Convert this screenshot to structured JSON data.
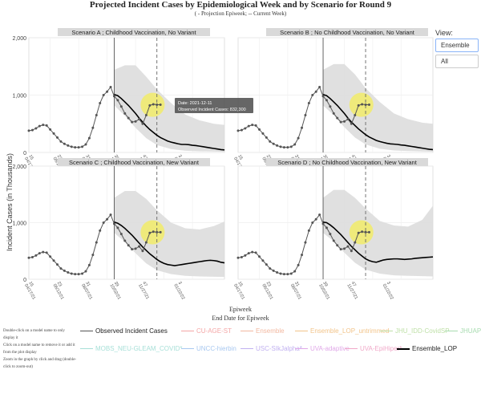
{
  "header": {
    "title": "Projected Incident Cases by Epidemiological Week and by Scenario for Round 9",
    "subtitle": "( - Projection Epiweek; -- Current Week)"
  },
  "view": {
    "label": "View:",
    "options": [
      "Ensemble",
      "All"
    ],
    "selected": "Ensemble"
  },
  "axis": {
    "ylabel": "Incident Cases (in Thousands)",
    "xlabel": "Epiweek",
    "xlabel2": "End Date for Epiweek",
    "y_ticks": [
      "0",
      "1,000",
      "2,000"
    ],
    "x_ticks": [
      "15\n04/17/21",
      "23\n06/12/21",
      "31\n08/07/21",
      "39\n10/02/21",
      "47\n11/27/21",
      "3\n01/22/22"
    ]
  },
  "tooltip": {
    "date": "Date: 2021-12-11",
    "value": "Observed Incident Cases:   832,300"
  },
  "help_text": [
    "Double-click on a model name to only display it",
    "Click on a model name to remove it or add it from the plot display",
    "Zoom in the graph by click and drag (double-click to zoom-out)"
  ],
  "legend": [
    {
      "label": "Observed Incident Cases",
      "color": "#555555"
    },
    {
      "label": "CU-AGE-ST",
      "color": "#f4a6a6"
    },
    {
      "label": "Ensemble",
      "color": "#f2b8a0"
    },
    {
      "label": "Ensemble_LOP_untrimmed",
      "color": "#f2c48a"
    },
    {
      "label": "JHU_IDD-CovidSP",
      "color": "#bfe0a8"
    },
    {
      "label": "JHUAPL-Bucky",
      "color": "#a8dcb0"
    },
    {
      "label": "MOBS_NEU-GLEAM_COVID*",
      "color": "#a8e0d8"
    },
    {
      "label": "UNCC-hierbin",
      "color": "#a8c8f0"
    },
    {
      "label": "USC-SIkJalpha*",
      "color": "#c0b0f0"
    },
    {
      "label": "UVA-adaptive",
      "color": "#e0a8e8"
    },
    {
      "label": "UVA-EpiHiper*",
      "color": "#f0a8c8"
    },
    {
      "label": "Ensemble_LOP",
      "color": "#000000"
    }
  ],
  "colors": {
    "observed": "#555555",
    "ensemble": "#000000",
    "band": "#dddddd",
    "highlight": "#f4ee5a",
    "panel_header_bg": "#d9d9d9"
  },
  "chart_data": [
    {
      "type": "line",
      "title": "Scenario A ; Childhood Vaccination, No Variant",
      "ylim": [
        0,
        2000
      ],
      "x_unit": "week index from epiweek 15 of 2021",
      "observed": {
        "name": "Observed Incident Cases",
        "x": [
          0,
          1,
          2,
          3,
          4,
          5,
          6,
          7,
          8,
          9,
          10,
          11,
          12,
          13,
          14,
          15,
          16,
          17,
          18,
          19,
          20,
          21,
          22,
          23,
          24,
          25,
          26,
          27,
          28,
          29,
          30,
          31,
          32,
          33,
          34,
          35,
          36,
          37
        ],
        "y": [
          380,
          390,
          420,
          460,
          480,
          470,
          400,
          330,
          260,
          190,
          150,
          120,
          100,
          90,
          90,
          100,
          140,
          250,
          430,
          650,
          860,
          1000,
          1060,
          1140,
          980,
          910,
          800,
          680,
          600,
          530,
          540,
          580,
          500,
          650,
          820,
          840,
          832,
          832
        ]
      },
      "projection_start": 24,
      "current_week": 36,
      "ensemble": {
        "name": "Ensemble_LOP",
        "x": [
          24,
          25,
          26,
          27,
          28,
          29,
          30,
          31,
          32,
          33,
          34,
          35,
          36,
          37,
          38,
          39,
          40,
          41,
          42,
          43,
          44,
          45,
          46,
          47,
          48,
          49,
          50,
          51,
          52,
          53,
          54,
          55
        ],
        "y": [
          1010,
          990,
          940,
          880,
          820,
          750,
          680,
          600,
          530,
          460,
          400,
          350,
          300,
          260,
          230,
          200,
          180,
          165,
          150,
          140,
          140,
          135,
          125,
          120,
          110,
          100,
          90,
          80,
          70,
          60,
          50,
          45
        ]
      },
      "band": {
        "x": [
          24,
          27,
          30,
          33,
          36,
          40,
          44,
          48,
          52,
          55
        ],
        "upper": [
          1440,
          1520,
          1520,
          1320,
          1100,
          860,
          660,
          560,
          500,
          480
        ],
        "lower": [
          820,
          640,
          430,
          250,
          130,
          60,
          30,
          20,
          15,
          10
        ]
      }
    },
    {
      "type": "line",
      "title": "Scenario B ; No Childhood Vaccination, No Variant",
      "ylim": [
        0,
        2000
      ],
      "x_unit": "week index from epiweek 15 of 2021",
      "observed": {
        "name": "Observed Incident Cases",
        "x": [
          0,
          1,
          2,
          3,
          4,
          5,
          6,
          7,
          8,
          9,
          10,
          11,
          12,
          13,
          14,
          15,
          16,
          17,
          18,
          19,
          20,
          21,
          22,
          23,
          24,
          25,
          26,
          27,
          28,
          29,
          30,
          31,
          32,
          33,
          34,
          35,
          36,
          37
        ],
        "y": [
          380,
          390,
          420,
          460,
          480,
          470,
          400,
          330,
          260,
          190,
          150,
          120,
          100,
          90,
          90,
          100,
          140,
          250,
          430,
          650,
          860,
          1000,
          1060,
          1140,
          980,
          910,
          800,
          680,
          600,
          530,
          540,
          580,
          500,
          650,
          820,
          840,
          832,
          832
        ]
      },
      "projection_start": 24,
      "current_week": 36,
      "ensemble": {
        "name": "Ensemble_LOP",
        "x": [
          24,
          25,
          26,
          27,
          28,
          29,
          30,
          31,
          32,
          33,
          34,
          35,
          36,
          37,
          38,
          39,
          40,
          41,
          42,
          43,
          44,
          45,
          46,
          47,
          48,
          49,
          50,
          51,
          52,
          53,
          54,
          55
        ],
        "y": [
          1010,
          990,
          940,
          880,
          820,
          750,
          680,
          600,
          530,
          470,
          410,
          360,
          310,
          270,
          240,
          210,
          190,
          175,
          160,
          150,
          145,
          140,
          130,
          125,
          115,
          105,
          95,
          85,
          75,
          65,
          55,
          50
        ]
      },
      "band": {
        "x": [
          24,
          27,
          30,
          33,
          36,
          40,
          44,
          48,
          52,
          55
        ],
        "upper": [
          1440,
          1540,
          1540,
          1360,
          1120,
          880,
          680,
          580,
          520,
          500
        ],
        "lower": [
          820,
          650,
          440,
          260,
          140,
          65,
          35,
          25,
          18,
          12
        ]
      }
    },
    {
      "type": "line",
      "title": "Scenario C ; Childhood Vaccination, New Variant",
      "ylim": [
        0,
        2000
      ],
      "x_unit": "week index from epiweek 15 of 2021",
      "observed": {
        "name": "Observed Incident Cases",
        "x": [
          0,
          1,
          2,
          3,
          4,
          5,
          6,
          7,
          8,
          9,
          10,
          11,
          12,
          13,
          14,
          15,
          16,
          17,
          18,
          19,
          20,
          21,
          22,
          23,
          24,
          25,
          26,
          27,
          28,
          29,
          30,
          31,
          32,
          33,
          34,
          35,
          36,
          37
        ],
        "y": [
          380,
          390,
          420,
          460,
          480,
          470,
          400,
          330,
          260,
          190,
          150,
          120,
          100,
          90,
          90,
          100,
          140,
          250,
          430,
          650,
          860,
          1000,
          1060,
          1140,
          980,
          910,
          800,
          680,
          600,
          530,
          540,
          580,
          500,
          650,
          820,
          840,
          832,
          832
        ]
      },
      "projection_start": 24,
      "current_week": 36,
      "ensemble": {
        "name": "Ensemble_LOP",
        "x": [
          24,
          25,
          26,
          27,
          28,
          29,
          30,
          31,
          32,
          33,
          34,
          35,
          36,
          37,
          38,
          39,
          40,
          41,
          42,
          43,
          44,
          45,
          46,
          47,
          48,
          49,
          50,
          51,
          52,
          53,
          54,
          55
        ],
        "y": [
          1010,
          990,
          950,
          900,
          840,
          780,
          710,
          640,
          570,
          510,
          450,
          400,
          350,
          310,
          280,
          260,
          250,
          240,
          250,
          260,
          270,
          280,
          290,
          300,
          310,
          320,
          330,
          335,
          330,
          320,
          300,
          290
        ]
      },
      "band": {
        "x": [
          24,
          27,
          30,
          33,
          36,
          40,
          44,
          48,
          52,
          55
        ],
        "upper": [
          1440,
          1560,
          1560,
          1420,
          1220,
          1000,
          900,
          880,
          940,
          1020
        ],
        "lower": [
          820,
          660,
          460,
          280,
          160,
          90,
          60,
          50,
          45,
          40
        ]
      }
    },
    {
      "type": "line",
      "title": "Scenario D ; No Childhood Vaccination, New Variant",
      "ylim": [
        0,
        2000
      ],
      "x_unit": "week index from epiweek 15 of 2021",
      "observed": {
        "name": "Observed Incident Cases",
        "x": [
          0,
          1,
          2,
          3,
          4,
          5,
          6,
          7,
          8,
          9,
          10,
          11,
          12,
          13,
          14,
          15,
          16,
          17,
          18,
          19,
          20,
          21,
          22,
          23,
          24,
          25,
          26,
          27,
          28,
          29,
          30,
          31,
          32,
          33,
          34,
          35,
          36,
          37
        ],
        "y": [
          380,
          390,
          420,
          460,
          480,
          470,
          400,
          330,
          260,
          190,
          150,
          120,
          100,
          90,
          90,
          100,
          140,
          250,
          430,
          650,
          860,
          1000,
          1060,
          1140,
          980,
          910,
          800,
          680,
          600,
          530,
          540,
          580,
          500,
          650,
          820,
          840,
          832,
          832
        ]
      },
      "projection_start": 24,
      "current_week": 36,
      "ensemble": {
        "name": "Ensemble_LOP",
        "x": [
          24,
          25,
          26,
          27,
          28,
          29,
          30,
          31,
          32,
          33,
          34,
          35,
          36,
          37,
          38,
          39,
          40,
          41,
          42,
          43,
          44,
          45,
          46,
          47,
          48,
          49,
          50,
          51,
          52,
          53,
          54,
          55
        ],
        "y": [
          1010,
          1000,
          960,
          910,
          850,
          790,
          720,
          650,
          580,
          520,
          460,
          410,
          360,
          330,
          310,
          300,
          320,
          340,
          350,
          355,
          360,
          360,
          355,
          350,
          355,
          360,
          370,
          375,
          380,
          385,
          390,
          395
        ]
      },
      "band": {
        "x": [
          24,
          27,
          30,
          33,
          36,
          40,
          44,
          48,
          52,
          55
        ],
        "upper": [
          1440,
          1580,
          1580,
          1440,
          1250,
          1030,
          950,
          930,
          1050,
          1300
        ],
        "lower": [
          820,
          670,
          470,
          290,
          170,
          100,
          70,
          60,
          55,
          50
        ]
      }
    }
  ]
}
